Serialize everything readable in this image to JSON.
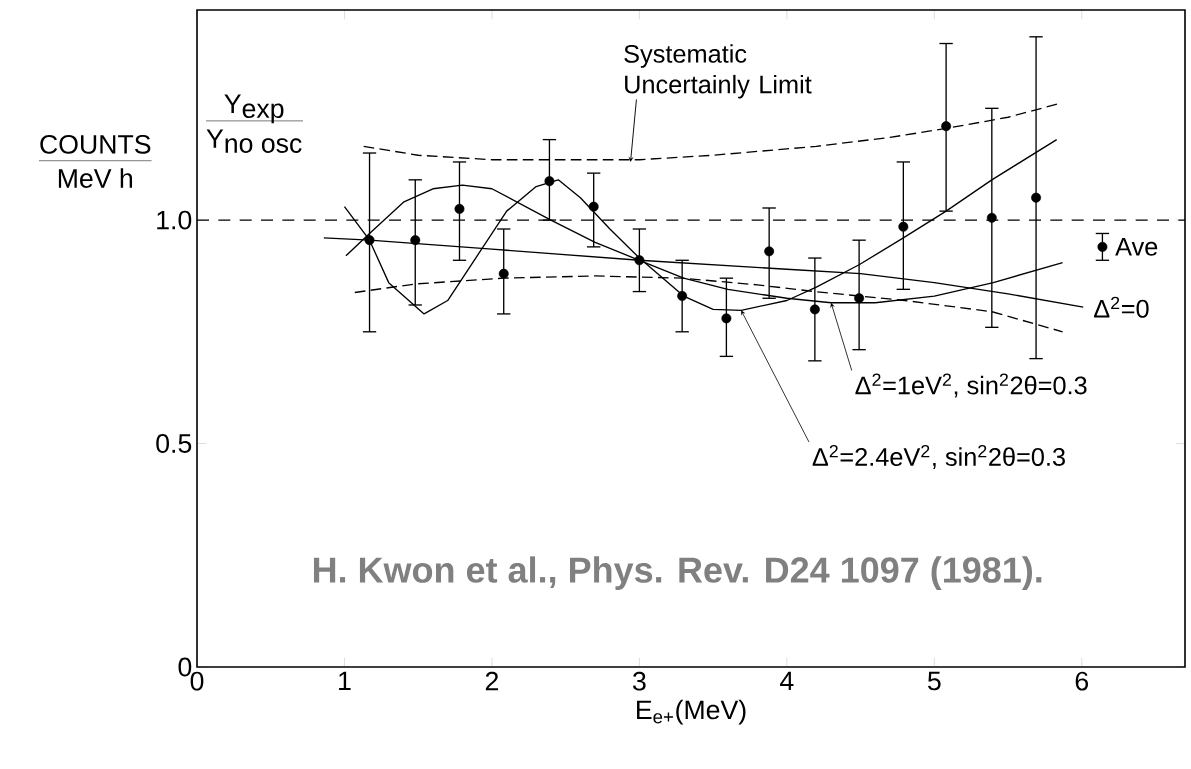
{
  "chart_data": {
    "type": "scatter",
    "xlabel": "E$_{e+}$(MeV)",
    "xlim": [
      0,
      6.7
    ],
    "ylim": [
      0,
      1.47
    ],
    "xticks": [
      0,
      1,
      2,
      3,
      4,
      5,
      6
    ],
    "yticks": [
      0,
      0.5,
      {
        "value": 1,
        "label": "1.0"
      }
    ],
    "grid": false,
    "marker": "circle",
    "ref_lines": [
      {
        "axis": "y",
        "value": 1,
        "line_style": "dashed"
      }
    ],
    "annotations": [
      "COUNTS",
      "MeV h",
      "\\mbox{Y}_{\\mbox{exp}}",
      "\\mbox{Y}_{\\mbox{no osc}}",
      {
        "text": "Systematic Uncertainly Limit",
        "x": 2.94,
        "y": 1.13
      },
      "H. Kwon et al., Phys. Rev. D24 1097 (1981)."
    ],
    "series": [
      {
        "color": "#000000",
        "x": [
          1.17,
          1.48,
          1.78,
          2.08,
          2.39,
          2.69,
          3.0,
          3.29,
          3.59,
          3.88,
          4.19,
          4.49,
          4.79,
          5.08,
          5.39,
          5.69
        ],
        "values": [
          0.955,
          0.955,
          1.025,
          0.88,
          1.087,
          1.03,
          0.91,
          0.83,
          0.78,
          0.93,
          0.8,
          0.825,
          0.985,
          1.21,
          1.005,
          1.05
        ],
        "errors": [
          [
            0.75,
            1.15
          ],
          [
            0.81,
            1.09
          ],
          [
            0.91,
            1.13
          ],
          [
            0.79,
            0.98
          ],
          [
            1.0,
            1.18
          ],
          [
            0.94,
            1.105
          ],
          [
            0.84,
            0.98
          ],
          [
            0.75,
            0.91
          ],
          [
            0.695,
            0.87
          ],
          [
            0.825,
            1.027
          ],
          [
            0.685,
            0.915
          ],
          [
            0.71,
            0.955
          ],
          [
            0.845,
            1.13
          ],
          [
            1.02,
            1.395
          ],
          [
            0.76,
            1.25
          ],
          [
            0.69,
            1.41
          ]
        ]
      },
      {
        "type": "scatter",
        "name": "Ave",
        "color": "#000000",
        "x": [
          6.14
        ],
        "values": [
          0.94
        ],
        "errors": [
          [
            0.91,
            0.97
          ]
        ]
      },
      {
        "type": "line",
        "name": "Δ$^{2}$=0",
        "color": "#000000",
        "marker": "none",
        "line_style": "solid",
        "x": [
          0.86,
          1.17,
          2.0,
          3.0,
          4.0,
          4.5,
          5.0,
          5.5,
          6.01
        ],
        "values": [
          0.96,
          0.955,
          0.935,
          0.91,
          0.89,
          0.88,
          0.86,
          0.835,
          0.805
        ]
      },
      {
        "type": "line",
        "name": "Δ$^{2}$=1eV$^{2}$,  sin$^{2}$2θ=0.3",
        "color": "#000000",
        "marker": "none",
        "line_style": "solid",
        "x": [
          1.01,
          1.17,
          1.4,
          1.6,
          1.8,
          2.0,
          2.4,
          2.7,
          3.0,
          3.3,
          3.6,
          4.0,
          4.3,
          4.6,
          5.0,
          5.4,
          5.87
        ],
        "values": [
          0.92,
          0.97,
          1.04,
          1.07,
          1.078,
          1.07,
          1.0,
          0.95,
          0.91,
          0.87,
          0.845,
          0.825,
          0.815,
          0.815,
          0.83,
          0.86,
          0.905
        ]
      },
      {
        "type": "line",
        "name": "Δ$^{2}$=2.4eV$^{2}$,  sin$^{2}$2θ=0.3",
        "color": "#000000",
        "marker": "none",
        "line_style": "solid",
        "x": [
          1.0,
          1.17,
          1.3,
          1.54,
          1.7,
          1.9,
          2.1,
          2.3,
          2.45,
          2.6,
          2.8,
          3.0,
          3.3,
          3.5,
          3.69,
          4.0,
          4.2,
          4.49,
          4.79,
          5.08,
          5.39,
          5.83
        ],
        "values": [
          1.03,
          0.955,
          0.86,
          0.79,
          0.82,
          0.92,
          1.02,
          1.075,
          1.09,
          1.05,
          0.98,
          0.915,
          0.83,
          0.8,
          0.798,
          0.82,
          0.85,
          0.9,
          0.96,
          1.02,
          1.09,
          1.18
        ]
      },
      {
        "type": "line",
        "color": "#000000",
        "marker": "none",
        "line_style": "dashed",
        "x": [
          1.13,
          1.5,
          2.0,
          3.0,
          3.5,
          4.2,
          4.7,
          5.08,
          5.5,
          5.84
        ],
        "values": [
          1.165,
          1.145,
          1.135,
          1.135,
          1.145,
          1.165,
          1.185,
          1.205,
          1.23,
          1.26
        ]
      },
      {
        "type": "line",
        "color": "#000000",
        "marker": "none",
        "line_style": "dashed",
        "x": [
          1.07,
          1.48,
          2.08,
          2.7,
          3.29,
          3.8,
          4.19,
          4.8,
          5.39,
          5.87
        ],
        "values": [
          0.838,
          0.857,
          0.87,
          0.875,
          0.87,
          0.855,
          0.84,
          0.82,
          0.795,
          0.75
        ]
      }
    ]
  }
}
